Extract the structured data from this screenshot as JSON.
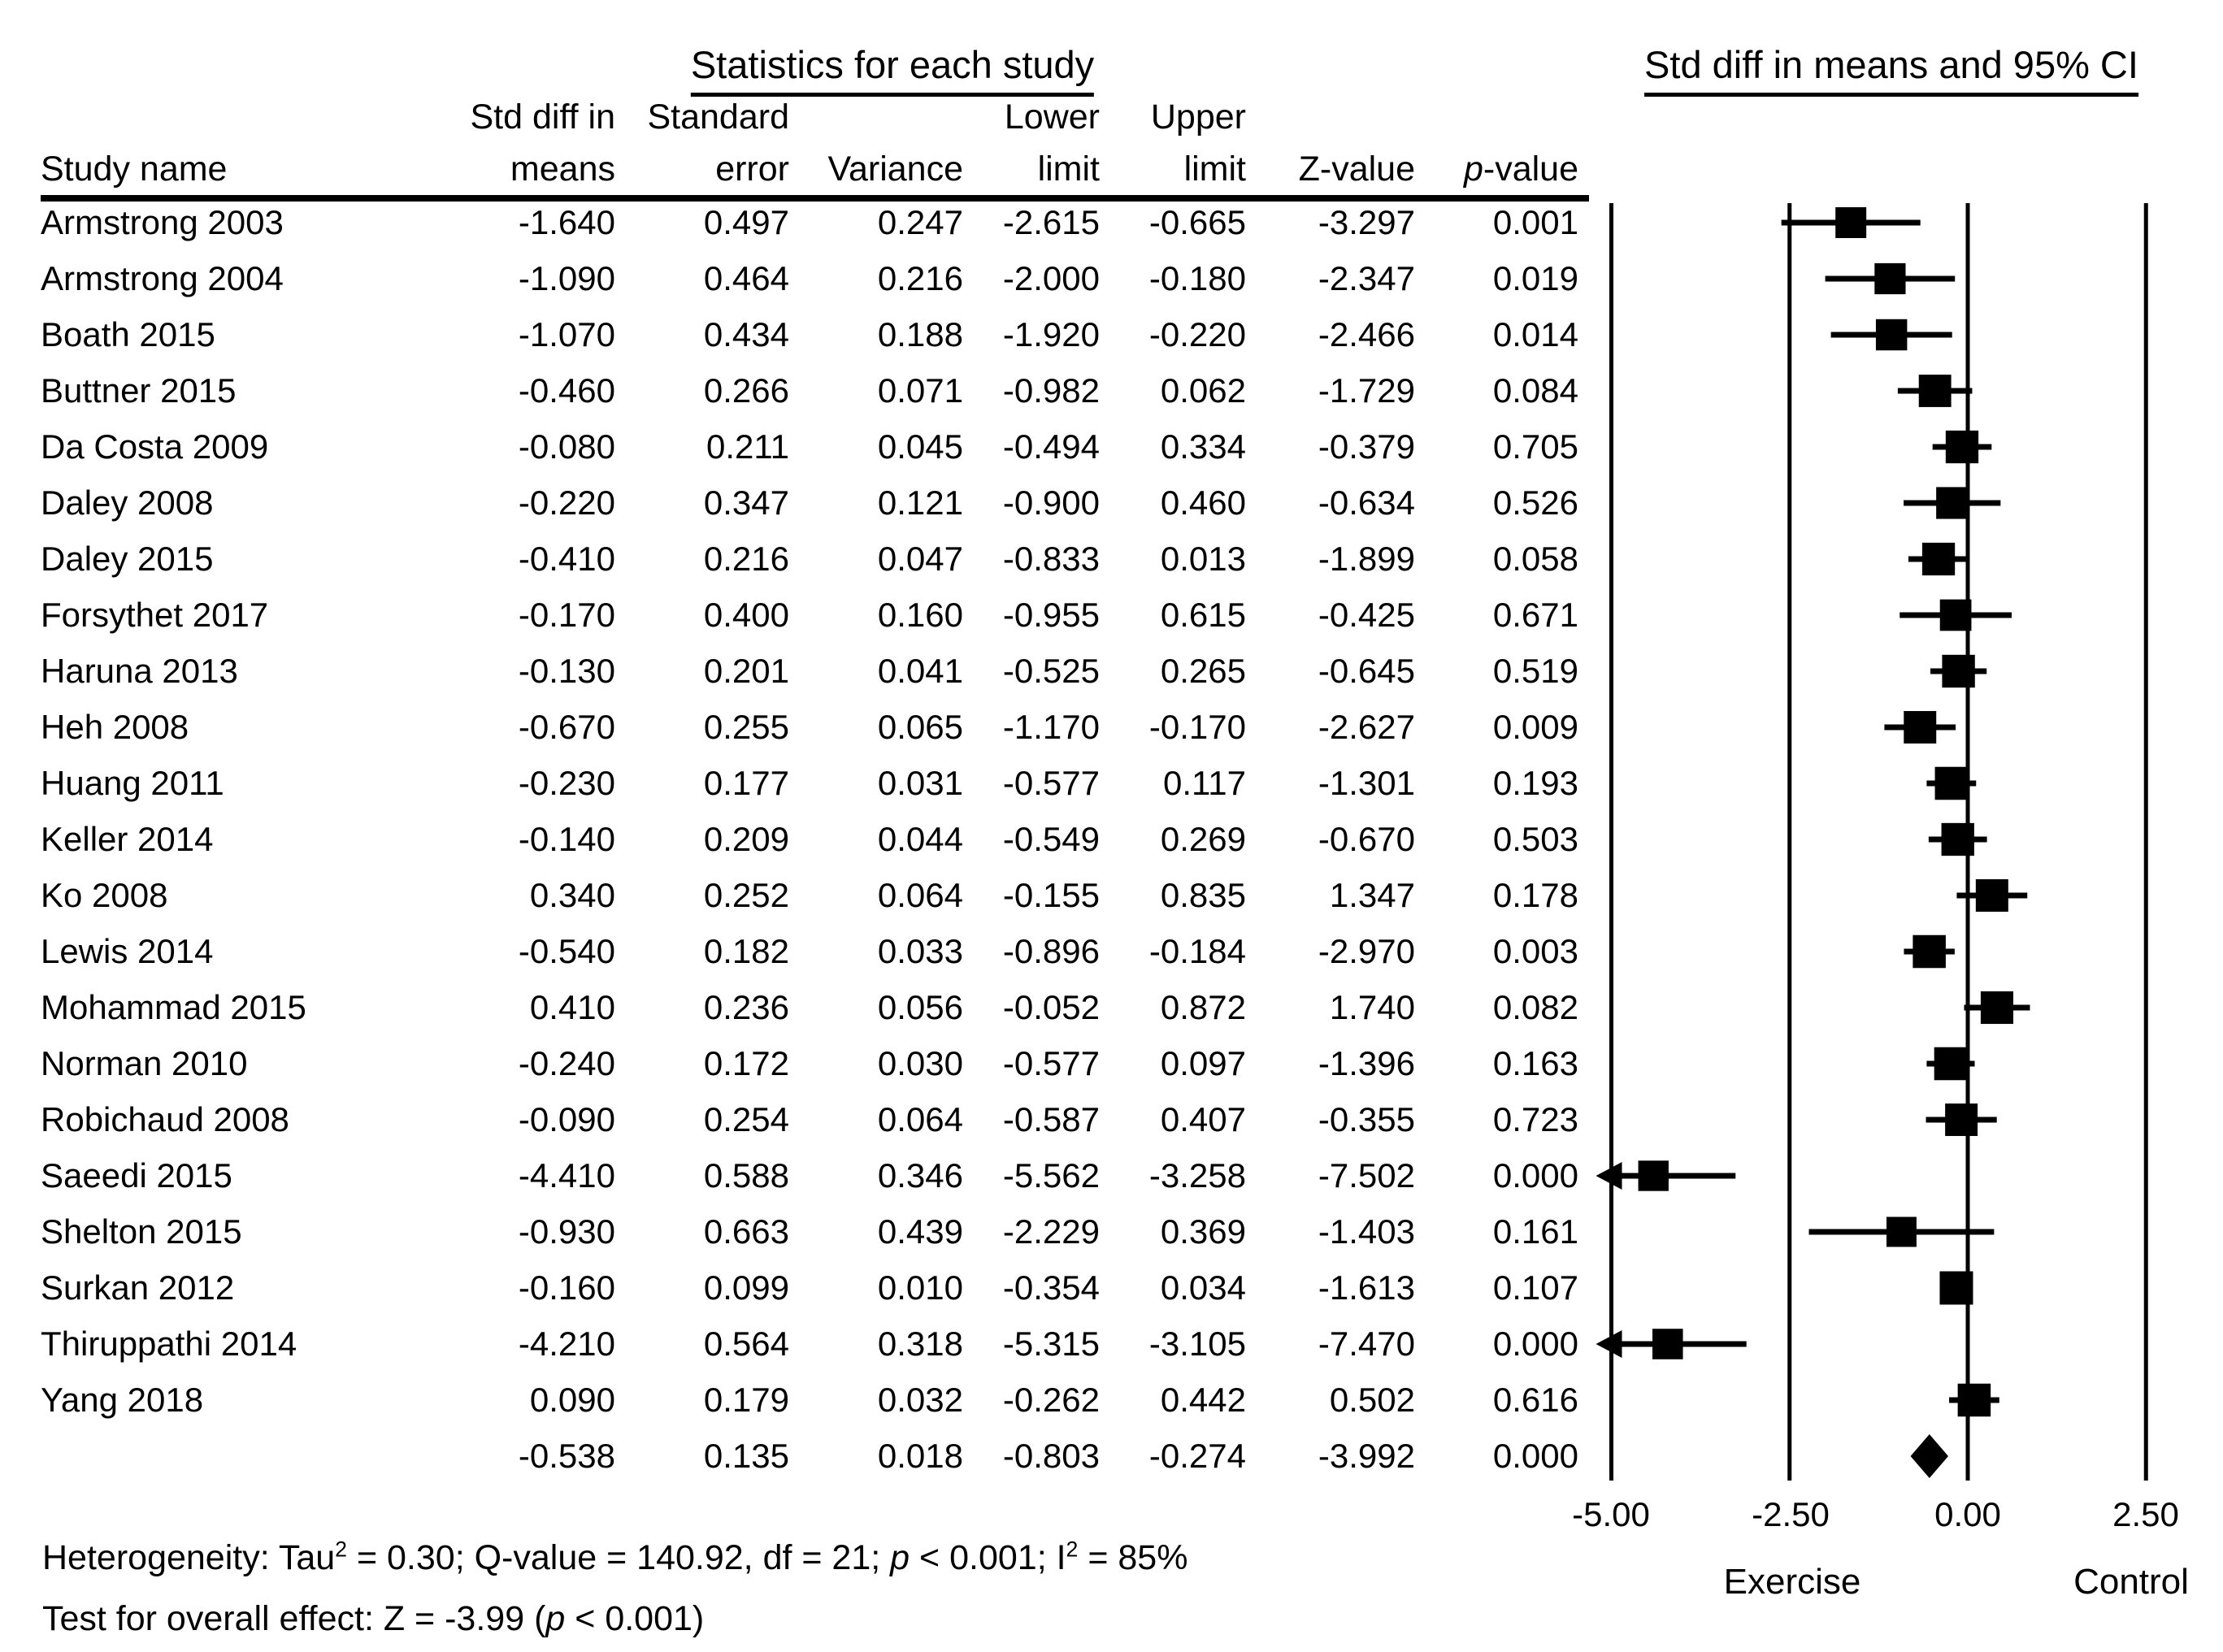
{
  "titles": {
    "table_section": "Statistics for each study",
    "plot_section": "Std diff in means and 95% CI"
  },
  "table": {
    "headers": [
      {
        "line1": "",
        "line2": "Study name"
      },
      {
        "line1": "Std diff in",
        "line2": "means"
      },
      {
        "line1": "Standard",
        "line2": "error"
      },
      {
        "line1": "",
        "line2": "Variance"
      },
      {
        "line1": "Lower",
        "line2": "limit"
      },
      {
        "line1": "Upper",
        "line2": "limit"
      },
      {
        "line1": "",
        "line2": "Z-value"
      },
      {
        "line1": "",
        "line2": [
          {
            "t": "p",
            "i": true
          },
          {
            "t": "-value"
          }
        ]
      }
    ]
  },
  "chart_data": {
    "type": "forest",
    "title": "Std diff in means and 95% CI",
    "xlim": [
      -5.0,
      2.5
    ],
    "x_ticks": [
      {
        "label": "-5.00",
        "value": -5.0
      },
      {
        "label": "-2.50",
        "value": -2.5
      },
      {
        "label": "0.00",
        "value": 0.0
      },
      {
        "label": "2.50",
        "value": 2.5
      }
    ],
    "group_labels": [
      "Exercise",
      "Control"
    ],
    "tau2": 0.3,
    "marker_color": "#000000",
    "studies": [
      {
        "name": "Armstrong 2003",
        "mean": -1.64,
        "se": 0.497,
        "variance": 0.247,
        "lower": -2.615,
        "upper": -0.665,
        "z": -3.297,
        "p": 0.001
      },
      {
        "name": "Armstrong 2004",
        "mean": -1.09,
        "se": 0.464,
        "variance": 0.216,
        "lower": -2.0,
        "upper": -0.18,
        "z": -2.347,
        "p": 0.019
      },
      {
        "name": "Boath 2015",
        "mean": -1.07,
        "se": 0.434,
        "variance": 0.188,
        "lower": -1.92,
        "upper": -0.22,
        "z": -2.466,
        "p": 0.014
      },
      {
        "name": "Buttner 2015",
        "mean": -0.46,
        "se": 0.266,
        "variance": 0.071,
        "lower": -0.982,
        "upper": 0.062,
        "z": -1.729,
        "p": 0.084
      },
      {
        "name": "Da Costa 2009",
        "mean": -0.08,
        "se": 0.211,
        "variance": 0.045,
        "lower": -0.494,
        "upper": 0.334,
        "z": -0.379,
        "p": 0.705
      },
      {
        "name": "Daley 2008",
        "mean": -0.22,
        "se": 0.347,
        "variance": 0.121,
        "lower": -0.9,
        "upper": 0.46,
        "z": -0.634,
        "p": 0.526
      },
      {
        "name": "Daley 2015",
        "mean": -0.41,
        "se": 0.216,
        "variance": 0.047,
        "lower": -0.833,
        "upper": 0.013,
        "z": -1.899,
        "p": 0.058
      },
      {
        "name": "Forsythet 2017",
        "mean": -0.17,
        "se": 0.4,
        "variance": 0.16,
        "lower": -0.955,
        "upper": 0.615,
        "z": -0.425,
        "p": 0.671
      },
      {
        "name": "Haruna 2013",
        "mean": -0.13,
        "se": 0.201,
        "variance": 0.041,
        "lower": -0.525,
        "upper": 0.265,
        "z": -0.645,
        "p": 0.519
      },
      {
        "name": "Heh 2008",
        "mean": -0.67,
        "se": 0.255,
        "variance": 0.065,
        "lower": -1.17,
        "upper": -0.17,
        "z": -2.627,
        "p": 0.009
      },
      {
        "name": "Huang 2011",
        "mean": -0.23,
        "se": 0.177,
        "variance": 0.031,
        "lower": -0.577,
        "upper": 0.117,
        "z": -1.301,
        "p": 0.193
      },
      {
        "name": "Keller 2014",
        "mean": -0.14,
        "se": 0.209,
        "variance": 0.044,
        "lower": -0.549,
        "upper": 0.269,
        "z": -0.67,
        "p": 0.503
      },
      {
        "name": "Ko 2008",
        "mean": 0.34,
        "se": 0.252,
        "variance": 0.064,
        "lower": -0.155,
        "upper": 0.835,
        "z": 1.347,
        "p": 0.178
      },
      {
        "name": "Lewis 2014",
        "mean": -0.54,
        "se": 0.182,
        "variance": 0.033,
        "lower": -0.896,
        "upper": -0.184,
        "z": -2.97,
        "p": 0.003
      },
      {
        "name": "Mohammad 2015",
        "mean": 0.41,
        "se": 0.236,
        "variance": 0.056,
        "lower": -0.052,
        "upper": 0.872,
        "z": 1.74,
        "p": 0.082
      },
      {
        "name": "Norman 2010",
        "mean": -0.24,
        "se": 0.172,
        "variance": 0.03,
        "lower": -0.577,
        "upper": 0.097,
        "z": -1.396,
        "p": 0.163
      },
      {
        "name": "Robichaud 2008",
        "mean": -0.09,
        "se": 0.254,
        "variance": 0.064,
        "lower": -0.587,
        "upper": 0.407,
        "z": -0.355,
        "p": 0.723
      },
      {
        "name": "Saeedi 2015",
        "mean": -4.41,
        "se": 0.588,
        "variance": 0.346,
        "lower": -5.562,
        "upper": -3.258,
        "z": -7.502,
        "p": 0.0
      },
      {
        "name": "Shelton 2015",
        "mean": -0.93,
        "se": 0.663,
        "variance": 0.439,
        "lower": -2.229,
        "upper": 0.369,
        "z": -1.403,
        "p": 0.161
      },
      {
        "name": "Surkan 2012",
        "mean": -0.16,
        "se": 0.099,
        "variance": 0.01,
        "lower": -0.354,
        "upper": 0.034,
        "z": -1.613,
        "p": 0.107
      },
      {
        "name": "Thiruppathi 2014",
        "mean": -4.21,
        "se": 0.564,
        "variance": 0.318,
        "lower": -5.315,
        "upper": -3.105,
        "z": -7.47,
        "p": 0.0
      },
      {
        "name": "Yang 2018",
        "mean": 0.09,
        "se": 0.179,
        "variance": 0.032,
        "lower": -0.262,
        "upper": 0.442,
        "z": 0.502,
        "p": 0.616
      }
    ],
    "overall": {
      "name": "",
      "mean": -0.538,
      "se": 0.135,
      "variance": 0.018,
      "lower": -0.803,
      "upper": -0.274,
      "z": -3.992,
      "p": 0.0
    }
  },
  "notes": {
    "heterogeneity": [
      {
        "t": "Heterogeneity: Tau"
      },
      {
        "t": "2",
        "s": true
      },
      {
        "t": " = 0.30; Q-value = 140.92, df = 21; "
      },
      {
        "t": "p",
        "i": true
      },
      {
        "t": " < 0.001; I"
      },
      {
        "t": "2",
        "s": true
      },
      {
        "t": " = 85%"
      }
    ],
    "overall_effect": [
      {
        "t": "Test for overall effect: Z = -3.99 ("
      },
      {
        "t": "p",
        "i": true
      },
      {
        "t": " < 0.001)"
      }
    ]
  }
}
